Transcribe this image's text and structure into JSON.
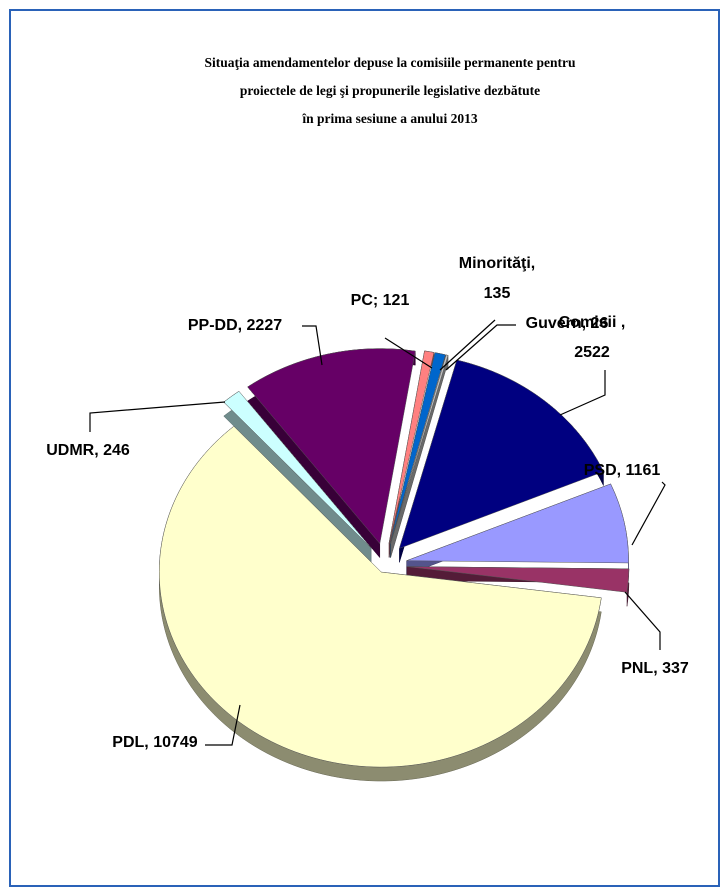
{
  "chart_data": {
    "type": "pie",
    "title": "Situaţia amendamentelor depuse la comisiile permanente pentru\nproiectele de legi şi propunerile legislative dezbătute\nîn prima sesiune a anului  2013",
    "values": [
      2522,
      1161,
      337,
      10749,
      246,
      2227,
      121,
      135,
      26
    ],
    "value_labels": [
      "Comisii ,\n2522",
      "PSD, 1161",
      "PNL, 337",
      "PDL, 10749",
      "UDMR, 246",
      "PP-DD, 2227",
      "PC; 121",
      "Minorităţi,\n135",
      "Guvern, 26"
    ],
    "colors": [
      "#000080",
      "#9999ff",
      "#993366",
      "#ffffcc",
      "#ccffff",
      "#660066",
      "#ff8080",
      "#0066cc",
      "#c0c0c0"
    ]
  }
}
